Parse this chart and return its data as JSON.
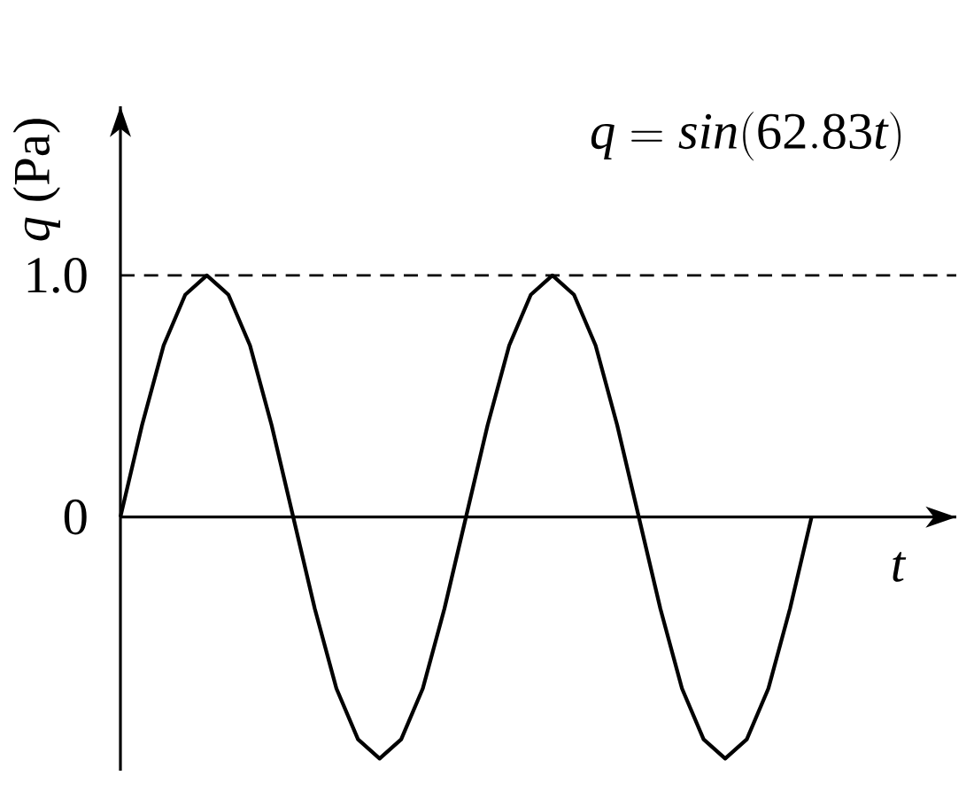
{
  "chart_data": {
    "type": "line",
    "categories": [
      null,
      null,
      null,
      null,
      null,
      null,
      null,
      null,
      null,
      null,
      null,
      null,
      null,
      null,
      null,
      null,
      null,
      null,
      null,
      null,
      null,
      null,
      null,
      null,
      null,
      null,
      null,
      null,
      null,
      null,
      null,
      null,
      null,
      null,
      null,
      null,
      null,
      null,
      null
    ],
    "values": [
      0,
      0.38,
      0.71,
      0.92,
      1,
      0.92,
      0.71,
      0.38,
      0,
      -0.38,
      -0.71,
      -0.92,
      -1,
      -0.92,
      -0.71,
      -0.38,
      0,
      0.38,
      0.71,
      0.92,
      1,
      0.92,
      0.71,
      0.38,
      0,
      -0.38,
      -0.71,
      -0.92,
      -1,
      -0.92,
      -0.71,
      -0.38,
      0,
      null,
      null,
      null,
      null,
      null,
      null
    ],
    "color": "#000000",
    "line_style": "solid",
    "ylim": [
      -1.05,
      1.7
    ],
    "yticks": [
      0,
      {
        "value": 1.0,
        "label": "1.0"
      }
    ],
    "tick_labels": "y",
    "ylabel": "*q* (Pa)",
    "xlabel": "t",
    "annotations": [
      "q = sin(62.83t)"
    ],
    "ref_lines": [
      {
        "axis": "y",
        "value": 1.0,
        "line_style": "dashed",
        "color": "#000000"
      }
    ]
  }
}
